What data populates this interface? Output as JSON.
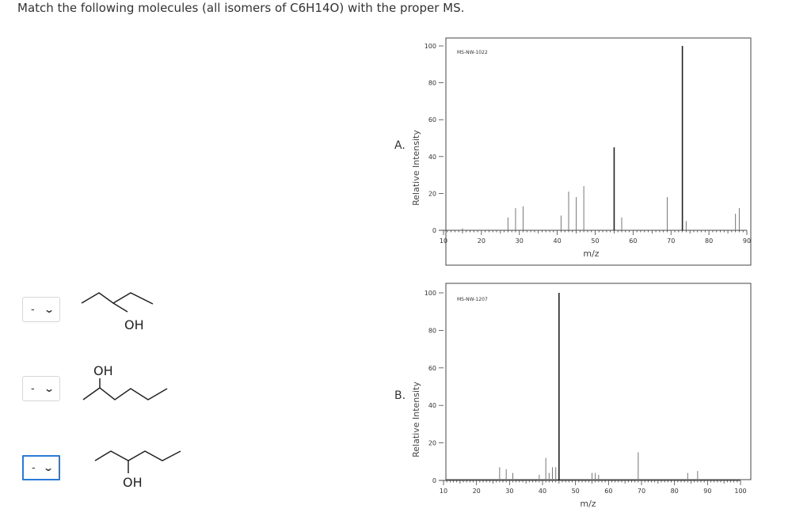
{
  "question": "Match the following molecules (all isomers of C6H14O) with the proper MS.",
  "dropdowns": [
    {
      "value": "-",
      "active": false
    },
    {
      "value": "-",
      "active": false
    },
    {
      "value": "-",
      "active": true
    }
  ],
  "molecules": [
    {
      "name": "3-methyl-3-pentanol",
      "oh_label": "OH"
    },
    {
      "name": "2-hexanol",
      "oh_label": "OH"
    },
    {
      "name": "3-hexanol",
      "oh_label": "OH"
    }
  ],
  "spectrum_labels": [
    "A.",
    "B."
  ],
  "colors": {
    "accent": "#2a7ad6",
    "peak": "#777777",
    "axis": "#444444"
  },
  "chart_data": [
    {
      "type": "bar",
      "id": "MS-NW-1022",
      "ylabel": "Relative Intensity",
      "xlabel": "m/z",
      "xlim": [
        10,
        90
      ],
      "ylim": [
        0,
        100
      ],
      "xticks": [
        10,
        20,
        30,
        40,
        50,
        60,
        70,
        80,
        90
      ],
      "yticks": [
        0,
        20,
        40,
        60,
        80,
        100
      ],
      "peaks": [
        {
          "x": 15,
          "y": 1
        },
        {
          "x": 27,
          "y": 7
        },
        {
          "x": 29,
          "y": 12
        },
        {
          "x": 31,
          "y": 13
        },
        {
          "x": 41,
          "y": 8
        },
        {
          "x": 43,
          "y": 21
        },
        {
          "x": 45,
          "y": 18
        },
        {
          "x": 47,
          "y": 24
        },
        {
          "x": 55,
          "y": 45
        },
        {
          "x": 57,
          "y": 7
        },
        {
          "x": 69,
          "y": 18
        },
        {
          "x": 73,
          "y": 100
        },
        {
          "x": 74,
          "y": 5
        },
        {
          "x": 87,
          "y": 9
        },
        {
          "x": 88,
          "y": 12
        }
      ]
    },
    {
      "type": "bar",
      "id": "MS-NW-1207",
      "ylabel": "Relative Intensity",
      "xlabel": "m/z",
      "xlim": [
        10,
        100
      ],
      "ylim": [
        0,
        100
      ],
      "xticks": [
        10,
        20,
        30,
        40,
        50,
        60,
        70,
        80,
        90,
        100
      ],
      "yticks": [
        0,
        20,
        40,
        60,
        80,
        100
      ],
      "peaks": [
        {
          "x": 27,
          "y": 7
        },
        {
          "x": 29,
          "y": 6
        },
        {
          "x": 31,
          "y": 4
        },
        {
          "x": 39,
          "y": 3
        },
        {
          "x": 41,
          "y": 12
        },
        {
          "x": 42,
          "y": 4
        },
        {
          "x": 43,
          "y": 7
        },
        {
          "x": 44,
          "y": 7
        },
        {
          "x": 45,
          "y": 100
        },
        {
          "x": 55,
          "y": 4
        },
        {
          "x": 56,
          "y": 4
        },
        {
          "x": 57,
          "y": 3
        },
        {
          "x": 69,
          "y": 15
        },
        {
          "x": 84,
          "y": 4
        },
        {
          "x": 87,
          "y": 5
        }
      ]
    }
  ]
}
